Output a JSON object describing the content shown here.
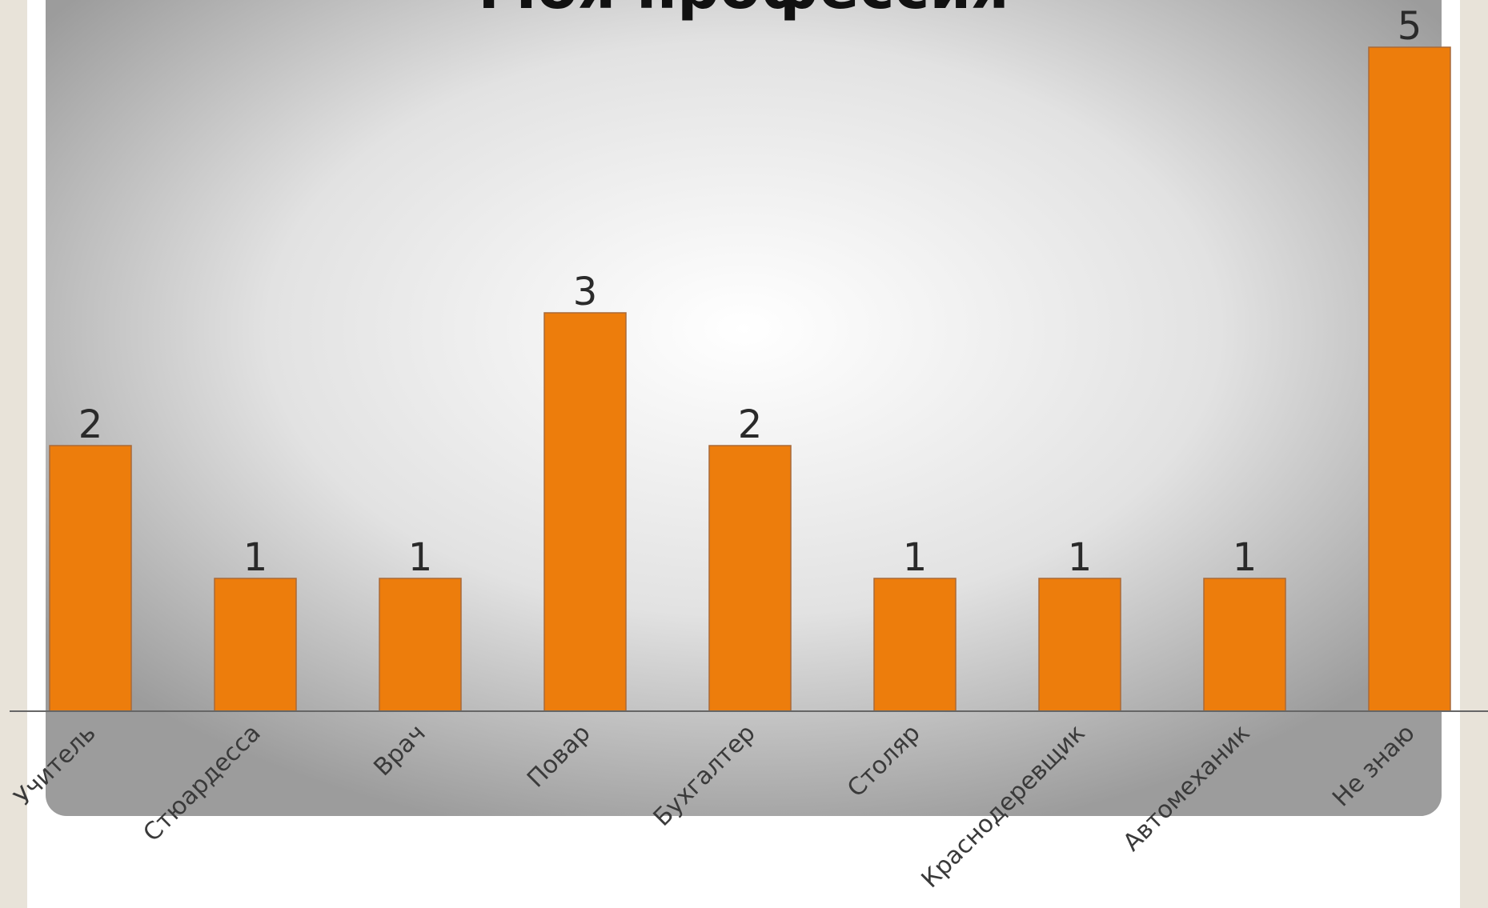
{
  "chart_data": {
    "type": "bar",
    "title": "Моя профессия",
    "categories": [
      "Учитель",
      "Стюардесса",
      "Врач",
      "Повар",
      "Бухгалтер",
      "Столяр",
      "Краснодеревщик",
      "Автомеханик",
      "Не знаю"
    ],
    "values": [
      2,
      1,
      1,
      3,
      2,
      1,
      1,
      1,
      5
    ],
    "ylim": [
      0,
      5
    ],
    "grid": false,
    "legend": "none",
    "bar_color": "#ed7d0c",
    "bar_border": "#a86a3a",
    "data_labels": true
  }
}
